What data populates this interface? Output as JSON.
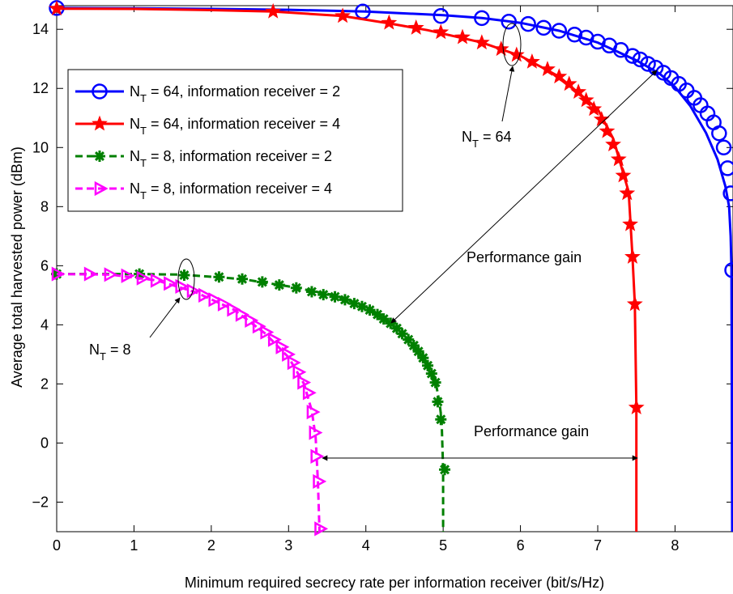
{
  "chart_data": {
    "type": "line",
    "xlabel": "Minimum required secrecy rate per information receiver (bit/s/Hz)",
    "ylabel": "Average total harvested power (dBm)",
    "xlim": [
      0,
      8.75
    ],
    "ylim": [
      -3,
      14.8
    ],
    "x_ticks": [
      0,
      1,
      2,
      3,
      4,
      5,
      6,
      7,
      8
    ],
    "y_ticks": [
      -2,
      0,
      2,
      4,
      6,
      8,
      10,
      12,
      14
    ],
    "grid": false,
    "legend_position": "upper-left",
    "series": [
      {
        "name_main": "N",
        "name_sub": "T",
        "name_rest": " = 64, information receiver = 2",
        "color": "#0000ff",
        "dash": "solid",
        "marker": "circle",
        "points": [
          [
            0,
            14.72
          ],
          [
            1.0,
            14.71
          ],
          [
            2.0,
            14.69
          ],
          [
            3.0,
            14.66
          ],
          [
            4.0,
            14.6
          ],
          [
            5.0,
            14.48
          ],
          [
            5.5,
            14.38
          ],
          [
            6.0,
            14.22
          ],
          [
            6.5,
            13.95
          ],
          [
            7.0,
            13.55
          ],
          [
            7.5,
            12.95
          ],
          [
            7.8,
            12.5
          ],
          [
            8.0,
            12.05
          ],
          [
            8.2,
            11.4
          ],
          [
            8.4,
            10.5
          ],
          [
            8.55,
            9.6
          ],
          [
            8.65,
            8.7
          ],
          [
            8.7,
            8.0
          ],
          [
            8.72,
            7.0
          ],
          [
            8.73,
            5.9
          ],
          [
            8.74,
            -3.0
          ]
        ],
        "markers": [
          [
            0,
            14.72
          ],
          [
            3.96,
            14.6
          ],
          [
            4.97,
            14.45
          ],
          [
            5.5,
            14.38
          ],
          [
            5.85,
            14.26
          ],
          [
            6.1,
            14.18
          ],
          [
            6.3,
            14.05
          ],
          [
            6.5,
            13.95
          ],
          [
            6.7,
            13.82
          ],
          [
            6.85,
            13.72
          ],
          [
            7.0,
            13.58
          ],
          [
            7.15,
            13.45
          ],
          [
            7.3,
            13.3
          ],
          [
            7.45,
            13.1
          ],
          [
            7.55,
            12.98
          ],
          [
            7.65,
            12.83
          ],
          [
            7.75,
            12.7
          ],
          [
            7.85,
            12.53
          ],
          [
            7.95,
            12.35
          ],
          [
            8.05,
            12.15
          ],
          [
            8.15,
            11.93
          ],
          [
            8.25,
            11.68
          ],
          [
            8.33,
            11.43
          ],
          [
            8.42,
            11.15
          ],
          [
            8.5,
            10.85
          ],
          [
            8.57,
            10.48
          ],
          [
            8.63,
            10.0
          ],
          [
            8.68,
            9.3
          ],
          [
            8.72,
            8.45
          ],
          [
            8.74,
            5.85
          ]
        ]
      },
      {
        "name_main": "N",
        "name_sub": "T",
        "name_rest": " = 64, information receiver = 4",
        "color": "#ff0000",
        "dash": "solid",
        "marker": "star",
        "points": [
          [
            0,
            14.7
          ],
          [
            1.0,
            14.69
          ],
          [
            2.0,
            14.65
          ],
          [
            2.8,
            14.6
          ],
          [
            3.7,
            14.45
          ],
          [
            4.3,
            14.2
          ],
          [
            4.8,
            13.97
          ],
          [
            5.5,
            13.55
          ],
          [
            6.0,
            13.1
          ],
          [
            6.5,
            12.4
          ],
          [
            7.0,
            11.3
          ],
          [
            7.2,
            10.3
          ],
          [
            7.4,
            8.5
          ],
          [
            7.45,
            6.3
          ],
          [
            7.48,
            4.7
          ],
          [
            7.5,
            1.2
          ],
          [
            7.5,
            -3.0
          ]
        ],
        "markers": [
          [
            0,
            14.7
          ],
          [
            2.8,
            14.6
          ],
          [
            3.7,
            14.45
          ],
          [
            4.3,
            14.22
          ],
          [
            4.65,
            14.05
          ],
          [
            4.97,
            13.9
          ],
          [
            5.25,
            13.73
          ],
          [
            5.5,
            13.55
          ],
          [
            5.75,
            13.33
          ],
          [
            5.95,
            13.13
          ],
          [
            6.15,
            12.9
          ],
          [
            6.35,
            12.65
          ],
          [
            6.5,
            12.4
          ],
          [
            6.63,
            12.15
          ],
          [
            6.75,
            11.88
          ],
          [
            6.85,
            11.6
          ],
          [
            6.95,
            11.3
          ],
          [
            7.05,
            10.95
          ],
          [
            7.12,
            10.55
          ],
          [
            7.2,
            10.1
          ],
          [
            7.27,
            9.6
          ],
          [
            7.33,
            9.05
          ],
          [
            7.38,
            8.45
          ],
          [
            7.42,
            7.4
          ],
          [
            7.45,
            6.3
          ],
          [
            7.48,
            4.7
          ],
          [
            7.5,
            1.2
          ]
        ]
      },
      {
        "name_main": "N",
        "name_sub": "T",
        "name_rest": " = 8, information receiver = 2",
        "color": "#008000",
        "dash": "dashed",
        "marker": "asterisk",
        "points": [
          [
            0,
            5.72
          ],
          [
            1.0,
            5.72
          ],
          [
            1.6,
            5.7
          ],
          [
            2.4,
            5.55
          ],
          [
            3.0,
            5.3
          ],
          [
            3.6,
            5.0
          ],
          [
            4.0,
            4.6
          ],
          [
            4.4,
            3.9
          ],
          [
            4.7,
            3.0
          ],
          [
            4.9,
            2.1
          ],
          [
            4.95,
            1.4
          ],
          [
            4.98,
            0.8
          ],
          [
            5.0,
            -0.9
          ],
          [
            5.0,
            -3.0
          ]
        ],
        "markers": [
          [
            0,
            5.72
          ],
          [
            1.07,
            5.72
          ],
          [
            1.65,
            5.68
          ],
          [
            2.1,
            5.62
          ],
          [
            2.4,
            5.55
          ],
          [
            2.66,
            5.45
          ],
          [
            2.88,
            5.35
          ],
          [
            3.1,
            5.25
          ],
          [
            3.3,
            5.12
          ],
          [
            3.45,
            5.02
          ],
          [
            3.6,
            4.95
          ],
          [
            3.73,
            4.85
          ],
          [
            3.85,
            4.72
          ],
          [
            3.95,
            4.62
          ],
          [
            4.05,
            4.5
          ],
          [
            4.15,
            4.35
          ],
          [
            4.23,
            4.2
          ],
          [
            4.32,
            4.05
          ],
          [
            4.4,
            3.88
          ],
          [
            4.47,
            3.7
          ],
          [
            4.55,
            3.5
          ],
          [
            4.62,
            3.3
          ],
          [
            4.68,
            3.1
          ],
          [
            4.74,
            2.88
          ],
          [
            4.8,
            2.62
          ],
          [
            4.85,
            2.35
          ],
          [
            4.9,
            2.05
          ],
          [
            4.93,
            1.4
          ],
          [
            4.97,
            0.8
          ],
          [
            5.02,
            -0.9
          ]
        ]
      },
      {
        "name_main": "N",
        "name_sub": "T",
        "name_rest": " = 8, information receiver = 4",
        "color": "#ff00ff",
        "dash": "dashed",
        "marker": "triangle-right",
        "points": [
          [
            0,
            5.72
          ],
          [
            0.7,
            5.7
          ],
          [
            1.3,
            5.5
          ],
          [
            1.8,
            5.1
          ],
          [
            2.3,
            4.5
          ],
          [
            2.7,
            3.7
          ],
          [
            3.0,
            2.9
          ],
          [
            3.2,
            2.0
          ],
          [
            3.3,
            1.1
          ],
          [
            3.35,
            0.2
          ],
          [
            3.38,
            -1.3
          ],
          [
            3.4,
            -3.0
          ]
        ],
        "markers": [
          [
            0,
            5.72
          ],
          [
            0.42,
            5.72
          ],
          [
            0.68,
            5.7
          ],
          [
            0.9,
            5.66
          ],
          [
            1.1,
            5.58
          ],
          [
            1.28,
            5.5
          ],
          [
            1.45,
            5.4
          ],
          [
            1.6,
            5.3
          ],
          [
            1.75,
            5.15
          ],
          [
            1.9,
            5.0
          ],
          [
            2.03,
            4.85
          ],
          [
            2.15,
            4.7
          ],
          [
            2.27,
            4.52
          ],
          [
            2.38,
            4.35
          ],
          [
            2.5,
            4.15
          ],
          [
            2.6,
            3.95
          ],
          [
            2.7,
            3.75
          ],
          [
            2.8,
            3.5
          ],
          [
            2.9,
            3.25
          ],
          [
            2.98,
            3.0
          ],
          [
            3.05,
            2.72
          ],
          [
            3.12,
            2.4
          ],
          [
            3.18,
            2.05
          ],
          [
            3.25,
            1.7
          ],
          [
            3.3,
            1.05
          ],
          [
            3.33,
            0.35
          ],
          [
            3.35,
            -0.45
          ],
          [
            3.38,
            -1.3
          ],
          [
            3.4,
            -2.9
          ]
        ]
      }
    ],
    "annotations": {
      "nt64_main": "N",
      "nt64_sub": "T",
      "nt64_rest": " = 64",
      "nt8_main": "N",
      "nt8_sub": "T",
      "nt8_rest": " = 8",
      "gain_upper": "Performance gain",
      "gain_lower": "Performance gain"
    }
  }
}
